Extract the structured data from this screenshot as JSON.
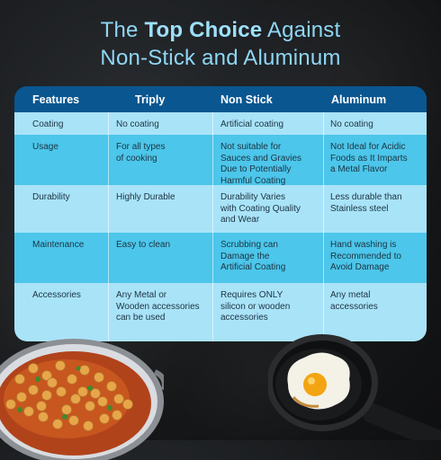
{
  "title": {
    "line1_pre": "The ",
    "line1_strong": "Top Choice",
    "line1_post": " Against",
    "line2": "Non-Stick and Aluminum"
  },
  "table": {
    "headers": [
      "Features",
      "Triply",
      "Non Stick",
      "Aluminum"
    ],
    "rows": [
      {
        "feature": "Coating",
        "triply": [
          "No coating"
        ],
        "nonstick": [
          "Artificial coating"
        ],
        "aluminum": [
          "No coating"
        ]
      },
      {
        "feature": "Usage",
        "triply": [
          "For all types",
          "of cooking"
        ],
        "nonstick": [
          "Not suitable for",
          "Sauces and Gravies",
          "Due to Potentially",
          "Harmful Coating"
        ],
        "aluminum": [
          "Not Ideal for Acidic",
          "Foods as It Imparts",
          "a Metal Flavor"
        ]
      },
      {
        "feature": "Durability",
        "triply": [
          "Highly Durable"
        ],
        "nonstick": [
          "Durability Varies",
          "with Coating Quality",
          "and Wear"
        ],
        "aluminum": [
          "Less durable than",
          "Stainless steel"
        ]
      },
      {
        "feature": "Maintenance",
        "triply": [
          "Easy to clean"
        ],
        "nonstick": [
          "Scrubbing can",
          "Damage the",
          "Artificial Coating"
        ],
        "aluminum": [
          "Hand washing is",
          "Recommended to",
          "Avoid Damage"
        ]
      },
      {
        "feature": "Accessories",
        "triply": [
          "Any Metal or",
          "Wooden accessories",
          "can be used"
        ],
        "nonstick": [
          "Requires ONLY",
          "silicon or wooden",
          "accessories"
        ],
        "aluminum": [
          "Any metal",
          "accessories"
        ]
      }
    ]
  },
  "colors": {
    "header_bg": "#0a5690",
    "row_light": "#a9e3f8",
    "row_dark": "#4cc6ea",
    "title": "#8fd6f5"
  }
}
